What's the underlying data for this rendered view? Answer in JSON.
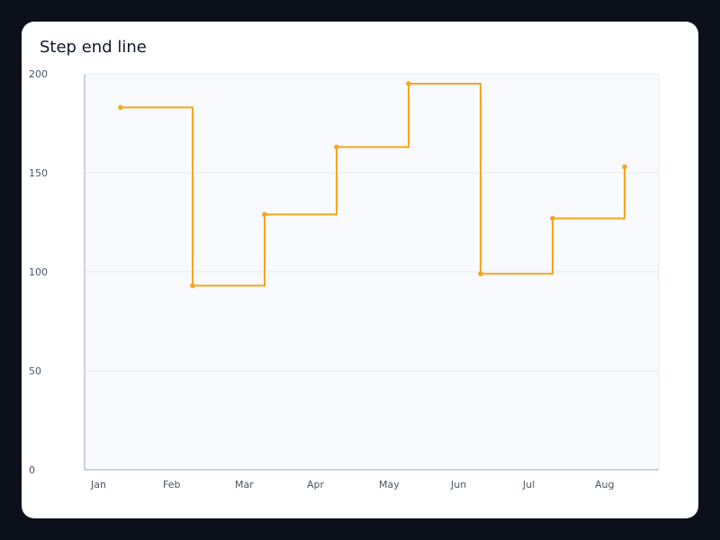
{
  "chart_data": {
    "type": "line",
    "step": "end",
    "title": "Step end line",
    "xlabel": "",
    "ylabel": "",
    "categories": [
      "Jan",
      "Feb",
      "Mar",
      "Apr",
      "May",
      "Jun",
      "Jul",
      "Aug"
    ],
    "values": [
      183,
      93,
      129,
      163,
      195,
      99,
      127,
      153
    ],
    "ylim": [
      0,
      200
    ],
    "yticks": [
      0,
      50,
      100,
      150,
      200
    ],
    "grid": true,
    "legend": "none",
    "colors": {
      "line": "#f5a623",
      "plot_bg": "#f8fafd",
      "grid": "#e6ebf3",
      "axis": "#b8c4d8"
    }
  }
}
